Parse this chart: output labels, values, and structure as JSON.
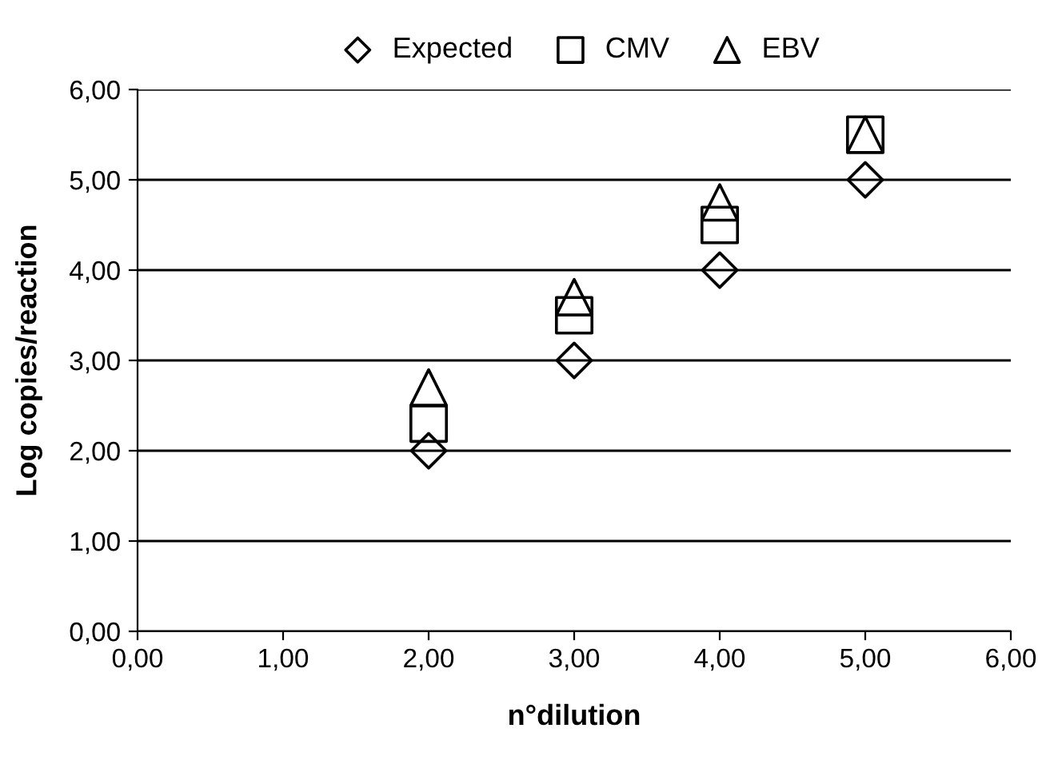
{
  "chart_data": {
    "type": "scatter",
    "xlabel": "n°dilution",
    "ylabel": "Log copies/reaction",
    "x": [
      2,
      3,
      4,
      5
    ],
    "series": [
      {
        "name": "Expected",
        "color": "#000000",
        "marker": "diamond",
        "values": [
          2,
          3,
          4,
          5
        ]
      },
      {
        "name": "CMV",
        "color": "#000000",
        "marker": "square",
        "values": [
          2.3,
          3.5,
          4.5,
          5.5
        ]
      },
      {
        "name": "EBV",
        "color": "#000000",
        "marker": "triangle",
        "values": [
          2.7,
          3.7,
          4.75,
          5.5
        ]
      }
    ],
    "xlim": [
      0,
      6
    ],
    "ylim": [
      0,
      6
    ],
    "xticks": [
      {
        "value": 0,
        "label": "0,00"
      },
      {
        "value": 1,
        "label": "1,00"
      },
      {
        "value": 2,
        "label": "2,00"
      },
      {
        "value": 3,
        "label": "3,00"
      },
      {
        "value": 4,
        "label": "4,00"
      },
      {
        "value": 5,
        "label": "5,00"
      },
      {
        "value": 6,
        "label": "6,00"
      }
    ],
    "yticks": [
      {
        "value": 0,
        "label": "0,00"
      },
      {
        "value": 1,
        "label": "1,00"
      },
      {
        "value": 2,
        "label": "2,00"
      },
      {
        "value": 3,
        "label": "3,00"
      },
      {
        "value": 4,
        "label": "4,00"
      },
      {
        "value": 5,
        "label": "5,00"
      },
      {
        "value": 6,
        "label": "6,00"
      }
    ],
    "grid": "y",
    "legend": "top"
  }
}
